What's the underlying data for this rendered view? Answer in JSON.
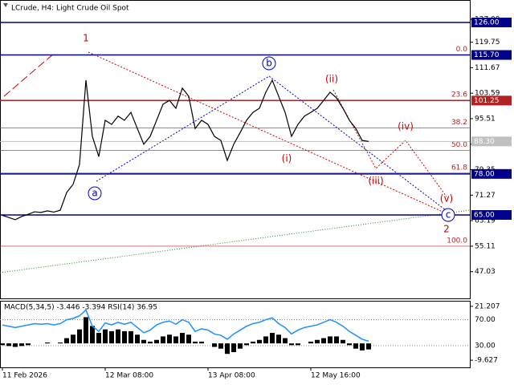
{
  "chart_data": [
    {
      "type": "line",
      "title": "LCrude, H4:  Light Crude Oil Spot",
      "color": "#000000",
      "categories": [
        "11 Feb 2026",
        null,
        null,
        null,
        null,
        null,
        null,
        null,
        null,
        null,
        null,
        null,
        null,
        null,
        null,
        null,
        "12 Mar 08:00",
        null,
        null,
        null,
        null,
        null,
        null,
        null,
        null,
        null,
        null,
        null,
        null,
        null,
        null,
        null,
        "13 Apr 08:00",
        null,
        null,
        null,
        null,
        null,
        null,
        null,
        null,
        null,
        null,
        null,
        null,
        null,
        null,
        null,
        "12 May 16:00",
        null,
        null,
        null,
        null,
        null,
        null,
        null,
        null,
        null
      ],
      "values": [
        64.9,
        64.2,
        63.5,
        64.5,
        65.2,
        66,
        65.8,
        66.3,
        65.9,
        66.5,
        72.1,
        74.7,
        81,
        107.7,
        89.9,
        83.5,
        95,
        93.7,
        96.3,
        95,
        97.5,
        92.4,
        87.4,
        89.9,
        95,
        100.1,
        101.3,
        98.8,
        105.2,
        102.6,
        92.4,
        95,
        93.7,
        89.9,
        88.6,
        82.3,
        87.4,
        91.1,
        95,
        97.5,
        98.8,
        103.9,
        107.7,
        102.6,
        97.5,
        89.9,
        93.7,
        96.3,
        97.5,
        98.8,
        101.3,
        103.9,
        102.1,
        98.8,
        95,
        92.4,
        88.6,
        88.3
      ],
      "ylim": [
        38.56,
        133.12
      ],
      "yticks": [
        {
          "value": 127,
          "label": "127.00"
        },
        {
          "value": 119.75,
          "label": "119.75"
        },
        {
          "value": 111.67,
          "label": "111.67"
        },
        {
          "value": 103.59,
          "label": "103.59"
        },
        {
          "value": 95.51,
          "label": "95.51"
        },
        {
          "value": 87.43,
          "label": "87.43"
        },
        {
          "value": 79.35,
          "label": "79.35"
        },
        {
          "value": 71.27,
          "label": "71.27"
        },
        {
          "value": 63.19,
          "label": "63.19"
        },
        {
          "value": 55.11,
          "label": "55.11"
        },
        {
          "value": 47.03,
          "label": "47.03"
        }
      ],
      "levels": [
        {
          "value": 126,
          "label": "126.00",
          "color": "#00008b"
        },
        {
          "value": 115.7,
          "label": "115.70",
          "color": "#00008b"
        },
        {
          "value": 101.25,
          "label": "101.25",
          "color": "#b22222"
        },
        {
          "value": 78,
          "label": "78.00",
          "color": "#00008b"
        },
        {
          "value": 65,
          "label": "65.00",
          "color": "#00008b"
        },
        {
          "value": 88.3,
          "label": "88.30",
          "color": "#c0c0c0"
        }
      ],
      "fibonacci": [
        {
          "value": 115.7,
          "label": "0.0"
        },
        {
          "value": 101.4,
          "label": "23.6"
        },
        {
          "value": 92.55,
          "label": "38.2"
        },
        {
          "value": 85.4,
          "label": "50.0"
        },
        {
          "value": 78.25,
          "label": "61.8"
        },
        {
          "value": 55.1,
          "label": "100.0"
        }
      ],
      "waves": [
        "1",
        "a",
        "b",
        "(i)",
        "(ii)",
        "(iii)",
        "(iv)",
        "(v)",
        "c",
        "2"
      ]
    },
    {
      "type": "bar",
      "title": "MACD(5,34,5) -3.446 -3.394 RSI(14) 36.95",
      "color": "#000000",
      "values": [
        -1,
        -1.5,
        -2,
        -1.5,
        -1,
        0,
        0,
        0.5,
        0,
        0.5,
        3,
        5,
        8,
        15,
        10,
        6,
        8,
        7,
        8,
        7,
        7,
        5,
        2,
        1,
        2,
        4,
        5,
        4,
        6,
        5,
        1,
        1,
        0,
        -2,
        -3,
        -6,
        -5,
        -3,
        -1,
        1,
        2,
        4,
        6,
        5,
        3,
        -1,
        -1,
        0,
        1,
        2,
        3,
        4,
        4,
        2,
        -1,
        -3,
        -4,
        -3.446
      ],
      "ylim": [
        -13.71,
        23.93
      ],
      "yticks": [
        {
          "value": 21.207,
          "label": "21.207"
        },
        {
          "value": -9.627,
          "label": "-9.627"
        }
      ],
      "rsi": {
        "color": "#1e90ff",
        "ylim": [
          -3.3,
          97.9
        ],
        "values": [
          62,
          60,
          58,
          60,
          62,
          64,
          63,
          64,
          62,
          64,
          70,
          72,
          76,
          85,
          60,
          52,
          65,
          62,
          66,
          63,
          66,
          58,
          50,
          54,
          62,
          66,
          68,
          63,
          70,
          66,
          52,
          56,
          54,
          48,
          46,
          40,
          48,
          54,
          60,
          64,
          66,
          70,
          73,
          64,
          58,
          48,
          54,
          58,
          60,
          62,
          66,
          70,
          66,
          60,
          52,
          46,
          40,
          36.95
        ],
        "yticks": [
          {
            "value": 70,
            "label": "70.00"
          },
          {
            "value": 30,
            "label": "30.00"
          }
        ]
      }
    }
  ]
}
